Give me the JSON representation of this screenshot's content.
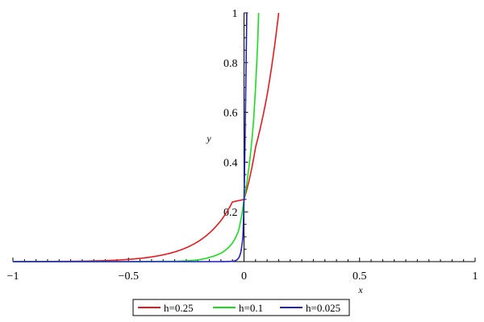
{
  "chart_data": {
    "type": "line",
    "title": "",
    "xlabel": "x",
    "ylabel": "y",
    "xlim": [
      -1,
      1
    ],
    "ylim": [
      0,
      1
    ],
    "x_ticks": [
      {
        "value": -1,
        "label": "−1"
      },
      {
        "value": -0.5,
        "label": "−0.5"
      },
      {
        "value": 0,
        "label": "0"
      },
      {
        "value": 0.5,
        "label": "0.5"
      },
      {
        "value": 1,
        "label": "1"
      }
    ],
    "y_ticks": [
      {
        "value": 0.2,
        "label": "0.2"
      },
      {
        "value": 0.4,
        "label": "0.4"
      },
      {
        "value": 0.6,
        "label": "0.6"
      },
      {
        "value": 0.8,
        "label": "0.8"
      },
      {
        "value": 1,
        "label": "1"
      }
    ],
    "grid": false,
    "legend_position": "bottom",
    "series": [
      {
        "name": "h=0.25",
        "color": "#e8191d",
        "x": [
          -1,
          -0.75,
          -0.5,
          -0.4,
          -0.3,
          -0.2,
          -0.15,
          -0.1,
          -0.05,
          0,
          0.05,
          0.1,
          0.15
        ],
        "y": [
          0,
          0.0012,
          0.009,
          0.019,
          0.039,
          0.08,
          0.115,
          0.165,
          0.24,
          0.25,
          0.46,
          0.67,
          1.0
        ]
      },
      {
        "name": "h=0.1",
        "color": "#17e01a",
        "x": [
          -1,
          -0.5,
          -0.3,
          -0.2,
          -0.15,
          -0.1,
          -0.075,
          -0.05,
          -0.025,
          0,
          0.02,
          0.04,
          0.06,
          0.063
        ],
        "y": [
          0,
          0,
          0.0013,
          0.007,
          0.017,
          0.034,
          0.05,
          0.075,
          0.12,
          0.25,
          0.37,
          0.55,
          0.9,
          1.0
        ]
      },
      {
        "name": "h=0.025",
        "color": "#1f1fc4",
        "x": [
          -1,
          -0.1,
          -0.05,
          -0.03,
          -0.02,
          -0.01,
          -0.005,
          0,
          0.003,
          0.006,
          0.009,
          0.012
        ],
        "y": [
          0,
          0,
          0.001,
          0.008,
          0.02,
          0.06,
          0.1,
          0.25,
          0.4,
          0.6,
          0.8,
          1.0
        ]
      }
    ]
  }
}
